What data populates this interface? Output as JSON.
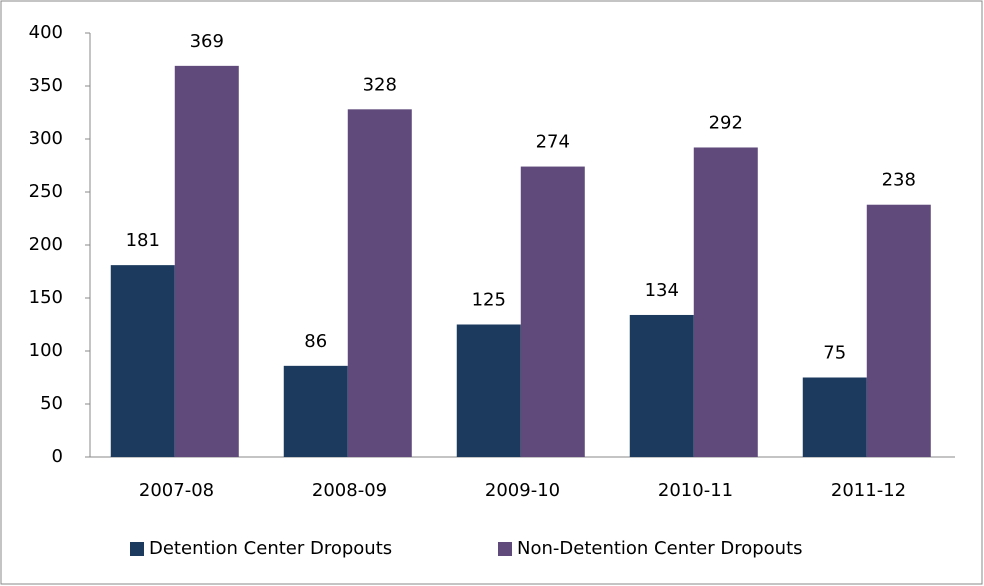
{
  "chart_data": {
    "type": "bar",
    "categories": [
      "2007-08",
      "2008-09",
      "2009-10",
      "2010-11",
      "2011-12"
    ],
    "series": [
      {
        "name": "Detention Center Dropouts",
        "color": "#1b3a5e",
        "values": [
          181,
          86,
          125,
          134,
          75
        ]
      },
      {
        "name": "Non-Detention Center Dropouts",
        "color": "#604a7b",
        "values": [
          369,
          328,
          274,
          292,
          238
        ]
      }
    ],
    "ylim": [
      0,
      400
    ],
    "yticks": [
      0,
      50,
      100,
      150,
      200,
      250,
      300,
      350,
      400
    ],
    "grid": false,
    "legend": "bottom"
  }
}
